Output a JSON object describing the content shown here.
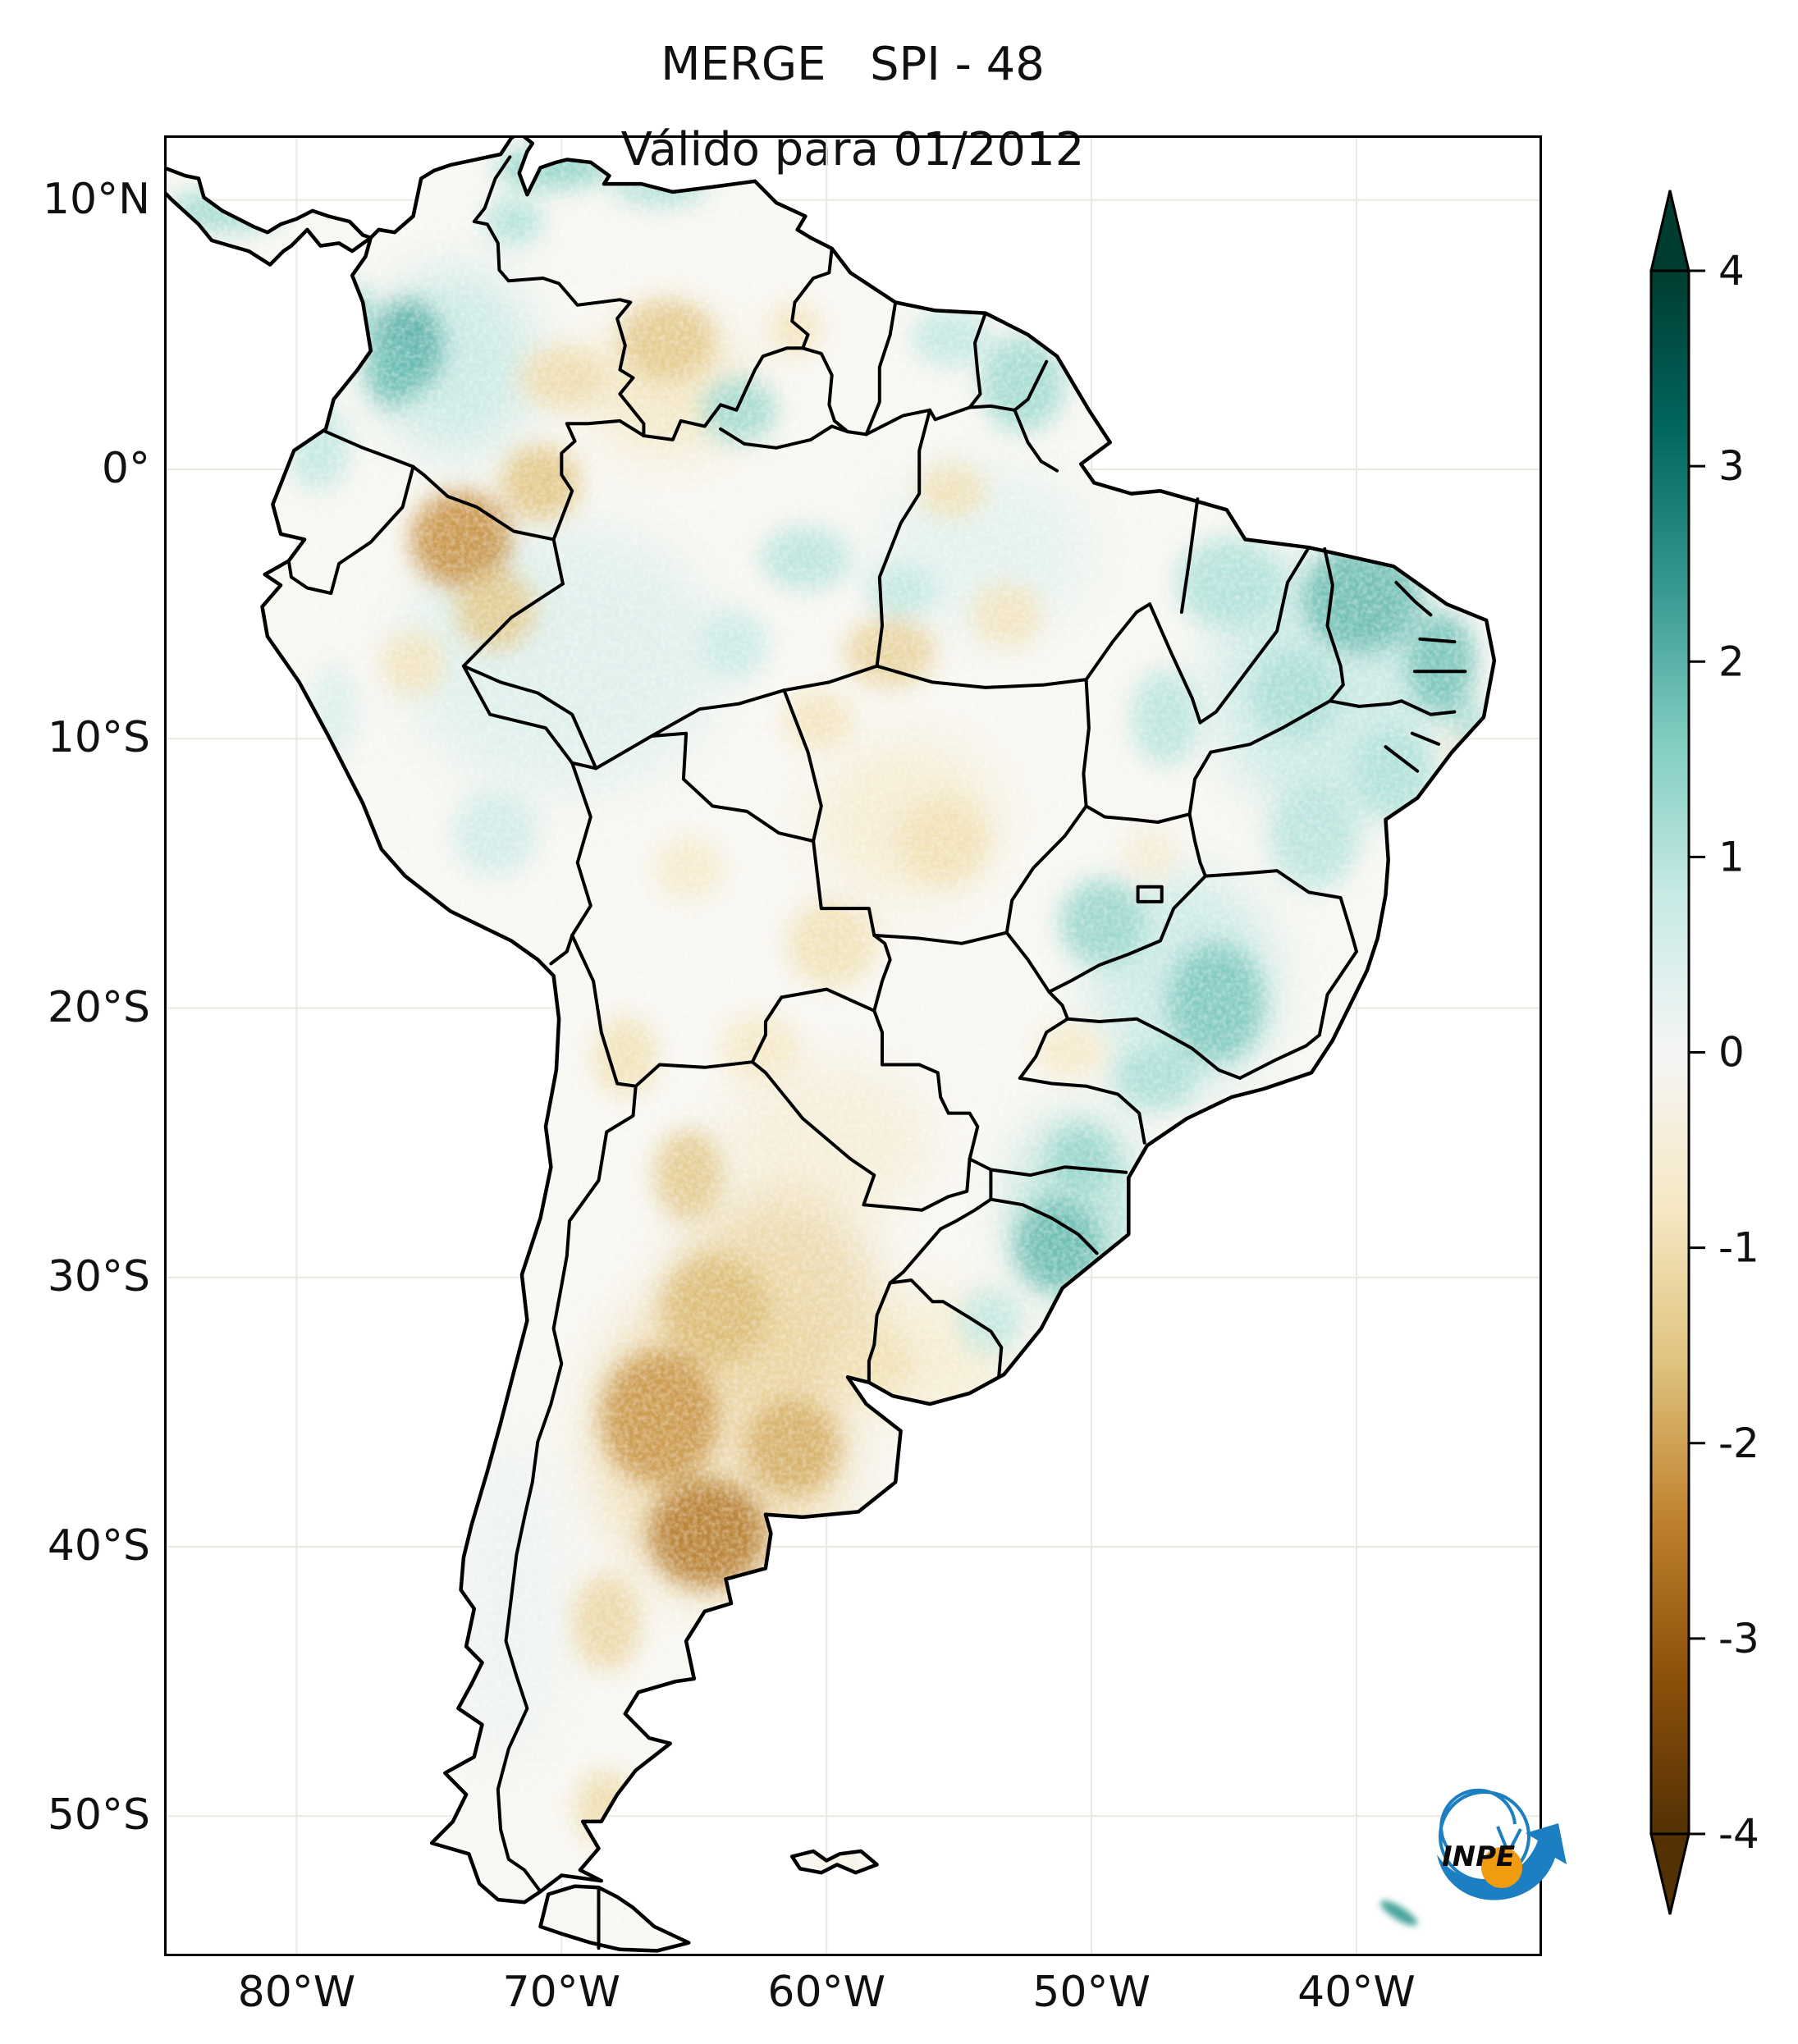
{
  "title": {
    "line1": "MERGE   SPI - 48",
    "line2": "Válido para 01/2012"
  },
  "axes": {
    "lat_ticks": [
      {
        "label": "10°N",
        "lat": 10
      },
      {
        "label": "0°",
        "lat": 0
      },
      {
        "label": "10°S",
        "lat": -10
      },
      {
        "label": "20°S",
        "lat": -20
      },
      {
        "label": "30°S",
        "lat": -30
      },
      {
        "label": "40°S",
        "lat": -40
      },
      {
        "label": "50°S",
        "lat": -50
      }
    ],
    "lon_ticks": [
      {
        "label": "80°W",
        "lon": -80
      },
      {
        "label": "70°W",
        "lon": -70
      },
      {
        "label": "60°W",
        "lon": -60
      },
      {
        "label": "50°W",
        "lon": -50
      },
      {
        "label": "40°W",
        "lon": -40
      }
    ]
  },
  "map": {
    "extent": {
      "west": -85,
      "east": -33,
      "north": 12.4,
      "south": -55.2
    },
    "grid_lons": [
      -80,
      -70,
      -60,
      -50,
      -40
    ],
    "grid_lats": [
      10,
      0,
      -10,
      -20,
      -30,
      -40,
      -50
    ],
    "land_base_color": "#f8f7f2",
    "border_color": "#000000",
    "gridline_color": "#ece8df",
    "anomaly_fields": [
      "lon",
      "lat",
      "rx_deg",
      "ry_deg",
      "spi"
    ],
    "washes": [
      [
        -70,
        -7,
        6,
        5,
        0.5
      ],
      [
        -41,
        -8,
        4.5,
        5,
        0.9
      ],
      [
        -64,
        -36,
        5,
        6,
        -1.1
      ],
      [
        -60,
        -25,
        4,
        3,
        -0.6
      ],
      [
        -56,
        -33,
        3,
        2.5,
        -0.7
      ],
      [
        -46.5,
        -19,
        3.5,
        4,
        0.9
      ],
      [
        -50.5,
        -27.5,
        2.5,
        3.5,
        1.2
      ],
      [
        -74,
        4,
        3,
        3.5,
        0.9
      ],
      [
        -72,
        -42,
        2,
        6,
        0.2
      ],
      [
        -54,
        -3,
        4,
        3,
        0.4
      ],
      [
        -66,
        3,
        3,
        2.5,
        -0.9
      ],
      [
        -57,
        -13,
        3.5,
        3,
        -0.7
      ],
      [
        -62,
        -31,
        4,
        4,
        -1.3
      ]
    ],
    "cores": [
      [
        -75.8,
        4.6,
        1.3,
        1.7,
        2.1
      ],
      [
        -76.4,
        3.6,
        1.0,
        1.3,
        1.8
      ],
      [
        -77.8,
        5.6,
        0.9,
        1.2,
        1.3
      ],
      [
        -71.8,
        9.2,
        1.1,
        0.9,
        1.1
      ],
      [
        -70.3,
        11.2,
        2.2,
        0.8,
        1.5
      ],
      [
        -66.3,
        10.4,
        1.8,
        0.6,
        1.2
      ],
      [
        -82.7,
        9.6,
        2.2,
        0.8,
        1.3
      ],
      [
        -79.2,
        0.8,
        1.2,
        1.6,
        0.9
      ],
      [
        -63.3,
        2.2,
        1.4,
        1.2,
        1.3
      ],
      [
        -52.6,
        3.2,
        1.6,
        1.8,
        1.3
      ],
      [
        -55.3,
        4.9,
        1.5,
        1.1,
        0.9
      ],
      [
        -60.8,
        -3.3,
        1.7,
        1.2,
        1.0
      ],
      [
        -57.2,
        -4.5,
        1.3,
        1.0,
        0.9
      ],
      [
        -63.5,
        -6.5,
        1.3,
        1.3,
        0.8
      ],
      [
        -44.8,
        -4.2,
        2.0,
        1.7,
        1.1
      ],
      [
        -39.8,
        -4.8,
        2.2,
        2.0,
        1.9
      ],
      [
        -36.8,
        -7.2,
        1.3,
        1.9,
        1.8
      ],
      [
        -35.8,
        -9.6,
        0.8,
        1.0,
        1.2
      ],
      [
        -42.3,
        -8.3,
        1.6,
        1.6,
        1.2
      ],
      [
        -38.6,
        -11.3,
        1.5,
        1.7,
        1.1
      ],
      [
        -41.6,
        -13.6,
        1.7,
        2.0,
        1.0
      ],
      [
        -47.2,
        -9.2,
        1.3,
        1.8,
        1.0
      ],
      [
        -49.6,
        -16.8,
        1.6,
        1.6,
        1.4
      ],
      [
        -45.3,
        -19.8,
        1.8,
        2.2,
        1.7
      ],
      [
        -47.6,
        -22.6,
        1.6,
        1.2,
        1.2
      ],
      [
        -50.4,
        -25.6,
        1.2,
        1.2,
        1.4
      ],
      [
        -51.3,
        -28.8,
        1.6,
        1.7,
        1.9
      ],
      [
        -53.8,
        -31.6,
        1.2,
        1.2,
        0.9
      ],
      [
        -72.5,
        -13.5,
        1.6,
        1.6,
        0.7
      ],
      [
        -78.6,
        -9.0,
        0.9,
        1.8,
        0.5
      ],
      [
        -73.8,
        -2.6,
        1.9,
        1.8,
        -2.3
      ],
      [
        -70.8,
        -0.5,
        1.5,
        1.4,
        -1.6
      ],
      [
        -72.5,
        -5.2,
        1.5,
        1.5,
        -1.5
      ],
      [
        -75.6,
        -7.2,
        1.2,
        1.2,
        -0.9
      ],
      [
        -66.0,
        4.8,
        1.8,
        1.5,
        -1.5
      ],
      [
        -69.9,
        3.4,
        1.7,
        1.2,
        -1.1
      ],
      [
        -61.2,
        5.2,
        1.0,
        1.0,
        -0.9
      ],
      [
        -55.3,
        -0.8,
        1.3,
        1.0,
        -1.0
      ],
      [
        -57.6,
        -6.8,
        1.7,
        1.3,
        -1.3
      ],
      [
        -53.2,
        -5.4,
        1.3,
        1.2,
        -0.9
      ],
      [
        -60.3,
        -9.3,
        1.3,
        1.1,
        -0.9
      ],
      [
        -55.6,
        -13.8,
        1.7,
        1.6,
        -1.0
      ],
      [
        -59.8,
        -17.6,
        1.7,
        1.6,
        -1.0
      ],
      [
        -65.2,
        -14.8,
        1.3,
        1.2,
        -0.7
      ],
      [
        -67.6,
        -21.8,
        1.2,
        1.5,
        -1.0
      ],
      [
        -62.5,
        -21.5,
        1.5,
        1.3,
        -0.8
      ],
      [
        -65.2,
        -26.2,
        1.3,
        1.7,
        -1.5
      ],
      [
        -64.2,
        -31.2,
        2.0,
        2.0,
        -1.7
      ],
      [
        -66.3,
        -35.2,
        2.2,
        2.5,
        -2.2
      ],
      [
        -64.5,
        -39.5,
        2.2,
        2.0,
        -2.6
      ],
      [
        -61.3,
        -36.3,
        1.8,
        1.8,
        -1.9
      ],
      [
        -58.3,
        -33.2,
        1.6,
        1.2,
        -1.0
      ],
      [
        -68.3,
        -42.8,
        1.3,
        1.8,
        -1.2
      ],
      [
        -68.3,
        -49.7,
        1.2,
        1.4,
        -1.1
      ],
      [
        -47.8,
        -14.3,
        1.0,
        1.0,
        -0.6
      ],
      [
        -50.8,
        -21.6,
        1.3,
        1.0,
        -0.8
      ],
      [
        -59.6,
        -51.9,
        0.9,
        0.4,
        -0.6
      ],
      [
        -36.3,
        -10.3,
        0.5,
        0.5,
        -0.7
      ]
    ],
    "south_georgia_streak": {
      "lon": -38.4,
      "lat": -53.6,
      "spi": 2.2
    }
  },
  "colorbar": {
    "colormap": "BrBG",
    "vmin": -4,
    "vmax": 4,
    "extend": "both",
    "ticks": [
      {
        "label": "4",
        "value": 4
      },
      {
        "label": "3",
        "value": 3
      },
      {
        "label": "2",
        "value": 2
      },
      {
        "label": "1",
        "value": 1
      },
      {
        "label": "0",
        "value": 0
      },
      {
        "label": "-1",
        "value": -1
      },
      {
        "label": "-2",
        "value": -2
      },
      {
        "label": "-3",
        "value": -3
      },
      {
        "label": "-4",
        "value": -4
      }
    ],
    "stops": [
      [
        -4,
        "#543005"
      ],
      [
        -3.2,
        "#8c510a"
      ],
      [
        -2.4,
        "#bf812d"
      ],
      [
        -1.6,
        "#dfc27d"
      ],
      [
        -0.8,
        "#f6e8c3"
      ],
      [
        0,
        "#f5f5f5"
      ],
      [
        0.8,
        "#c7eae5"
      ],
      [
        1.6,
        "#80cdc1"
      ],
      [
        2.4,
        "#35978f"
      ],
      [
        3.2,
        "#01665e"
      ],
      [
        4,
        "#003c30"
      ]
    ]
  },
  "logo": {
    "label": "INPE",
    "blue": "#1b7fc2",
    "orange": "#f09b10"
  }
}
